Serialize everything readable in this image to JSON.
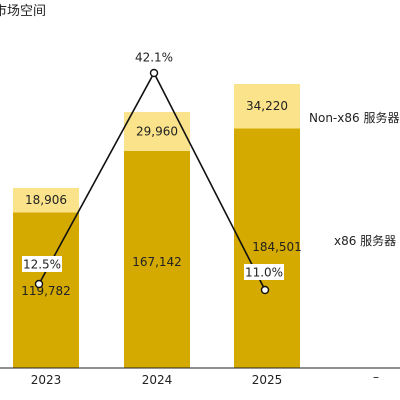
{
  "title": "市场空间",
  "corner_mark": "–",
  "colors": {
    "x86": "#d4aa00",
    "non_x86": "#fae38a",
    "line": "#111111",
    "axis": "#222222",
    "text": "#222222"
  },
  "chart_data": {
    "type": "bar",
    "stacked": true,
    "categories": [
      "2023",
      "2024",
      "2025"
    ],
    "series": [
      {
        "name": "x86 服务器",
        "values": [
          119782,
          167142,
          184501
        ],
        "value_labels": [
          "119,782",
          "167,142",
          "184,501"
        ]
      },
      {
        "name": "Non-x86 服务器",
        "values": [
          18906,
          29960,
          34220
        ],
        "value_labels": [
          "18,906",
          "29,960",
          "34,220"
        ]
      }
    ],
    "line_series": {
      "values": [
        12.5,
        42.1,
        11.0
      ],
      "labels": [
        "12.5%",
        "42.1%",
        "11.0%"
      ]
    },
    "legend_placement": "right",
    "grid": false
  }
}
